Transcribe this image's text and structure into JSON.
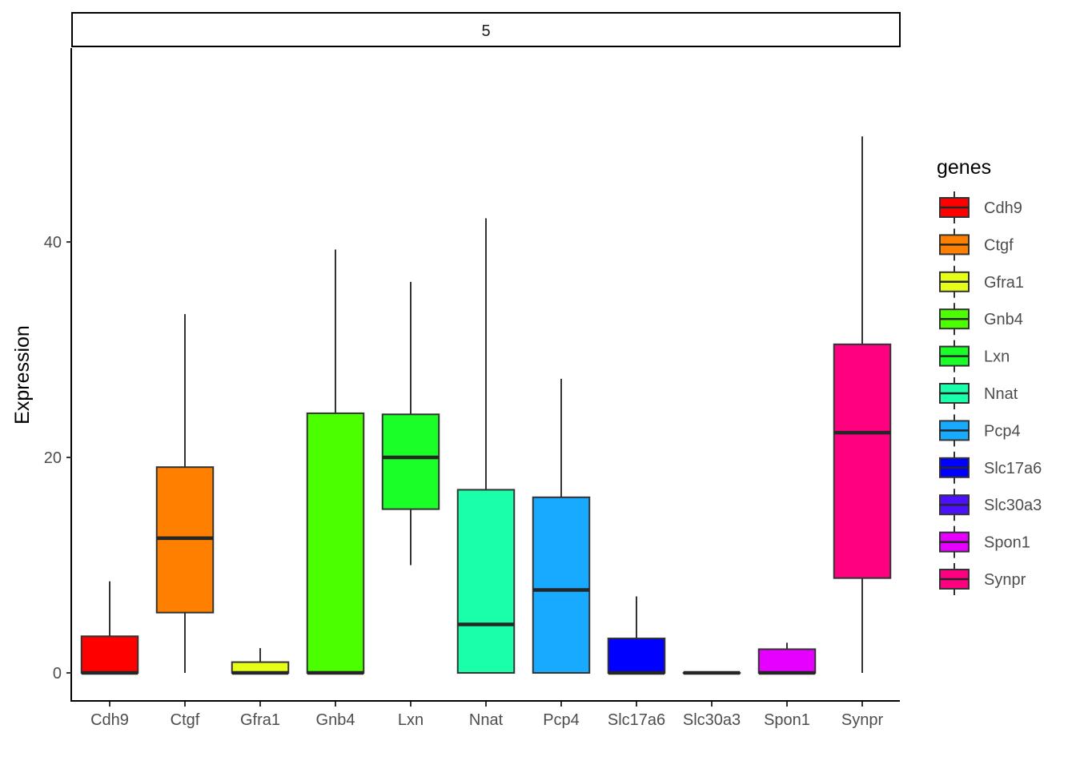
{
  "chart_data": {
    "type": "boxplot",
    "facet_label": "5",
    "xlabel": "",
    "ylabel": "Expression",
    "ylim": [
      -2.6,
      58
    ],
    "yticks": [
      0,
      20,
      40
    ],
    "grid": false,
    "legend": {
      "title": "genes",
      "position": "right"
    },
    "categories": [
      "Cdh9",
      "Ctgf",
      "Gfra1",
      "Gnb4",
      "Lxn",
      "Nnat",
      "Pcp4",
      "Slc17a6",
      "Slc30a3",
      "Spon1",
      "Synpr"
    ],
    "colors": [
      "#FF0000",
      "#FF7F00",
      "#E5FF19",
      "#4CFF00",
      "#1AFF28",
      "#19FFAA",
      "#18AAFF",
      "#0000FF",
      "#4C0FFF",
      "#E500FF",
      "#FF0080"
    ],
    "boxes": [
      {
        "gene": "Cdh9",
        "min": 0,
        "q1": 0,
        "median": 0,
        "q3": 3.4,
        "max": 8.5
      },
      {
        "gene": "Ctgf",
        "min": 0,
        "q1": 5.6,
        "median": 12.5,
        "q3": 19.1,
        "max": 33.3
      },
      {
        "gene": "Gfra1",
        "min": 0,
        "q1": 0,
        "median": 0,
        "q3": 1.0,
        "max": 2.3
      },
      {
        "gene": "Gnb4",
        "min": 0,
        "q1": 0,
        "median": 0,
        "q3": 24.1,
        "max": 39.3
      },
      {
        "gene": "Lxn",
        "min": 10.0,
        "q1": 15.2,
        "median": 20.0,
        "q3": 24.0,
        "max": 36.3
      },
      {
        "gene": "Nnat",
        "min": 0,
        "q1": 0,
        "median": 4.5,
        "q3": 17.0,
        "max": 42.2
      },
      {
        "gene": "Pcp4",
        "min": 0,
        "q1": 0,
        "median": 7.7,
        "q3": 16.3,
        "max": 27.3
      },
      {
        "gene": "Slc17a6",
        "min": 0,
        "q1": 0,
        "median": 0,
        "q3": 3.2,
        "max": 7.1
      },
      {
        "gene": "Slc30a3",
        "min": 0,
        "q1": 0,
        "median": 0,
        "q3": 0,
        "max": 0
      },
      {
        "gene": "Spon1",
        "min": 0,
        "q1": 0,
        "median": 0,
        "q3": 2.2,
        "max": 2.8
      },
      {
        "gene": "Synpr",
        "min": 0,
        "q1": 8.8,
        "median": 22.3,
        "q3": 30.5,
        "max": 49.8
      }
    ]
  }
}
